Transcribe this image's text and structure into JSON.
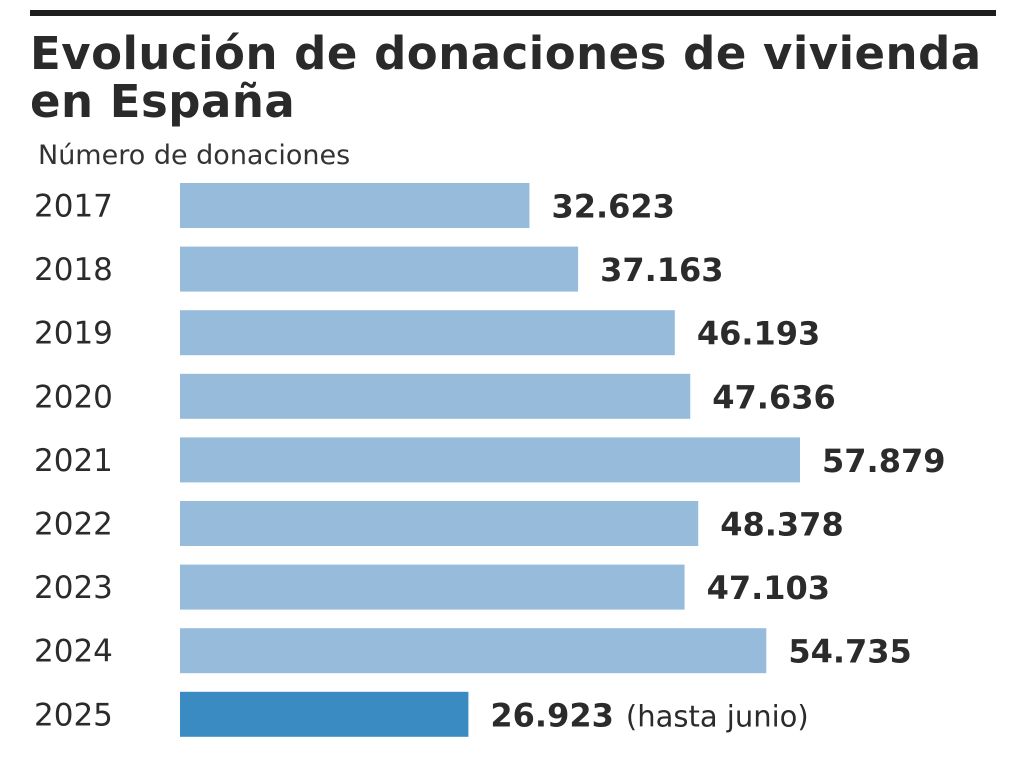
{
  "title": "Evolución de donaciones de vivienda en España",
  "chart_data": {
    "type": "bar",
    "orientation": "horizontal",
    "title": "Evolución de donaciones de vivienda en España",
    "subtitle": "Número de donaciones",
    "categories": [
      "2017",
      "2018",
      "2019",
      "2020",
      "2021",
      "2022",
      "2023",
      "2024",
      "2025"
    ],
    "values": [
      32623,
      37163,
      46193,
      47636,
      57879,
      48378,
      47103,
      54735,
      26923
    ],
    "value_labels": [
      "32.623",
      "37.163",
      "46.193",
      "47.636",
      "57.879",
      "48.378",
      "47.103",
      "54.735",
      "26.923"
    ],
    "annotations": [
      "",
      "",
      "",
      "",
      "",
      "",
      "",
      "",
      "(hasta junio)"
    ],
    "colors": {
      "bar": "#97bcdb",
      "highlight": "#3a8bc2",
      "text": "#2b2b2b"
    },
    "highlight_index": 8,
    "grid": false,
    "legend": "none"
  }
}
